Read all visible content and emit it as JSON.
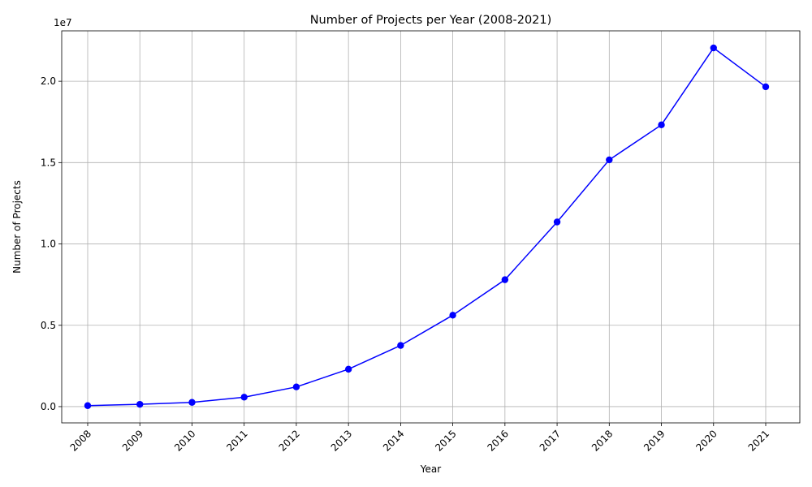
{
  "chart_data": {
    "type": "line",
    "title": "Number of Projects per Year (2008-2021)",
    "xlabel": "Year",
    "ylabel": "Number of Projects",
    "offset_label": "1e7",
    "categories": [
      "2008",
      "2009",
      "2010",
      "2011",
      "2012",
      "2013",
      "2014",
      "2015",
      "2016",
      "2017",
      "2018",
      "2019",
      "2020",
      "2021"
    ],
    "series": [
      {
        "values": [
          60000,
          140000,
          260000,
          580000,
          1210000,
          2300000,
          3760000,
          5620000,
          7800000,
          11350000,
          15170000,
          17320000,
          22050000,
          19660000
        ],
        "color": "#0000ff",
        "marker": "circle"
      }
    ],
    "yticks": [
      0,
      5000000,
      10000000,
      15000000,
      20000000
    ],
    "ytick_labels": [
      "0.0",
      "0.5",
      "1.0",
      "1.5",
      "2.0"
    ],
    "ylim": [
      -1000000,
      23100000
    ],
    "grid": true,
    "xtick_rotation": 45
  }
}
